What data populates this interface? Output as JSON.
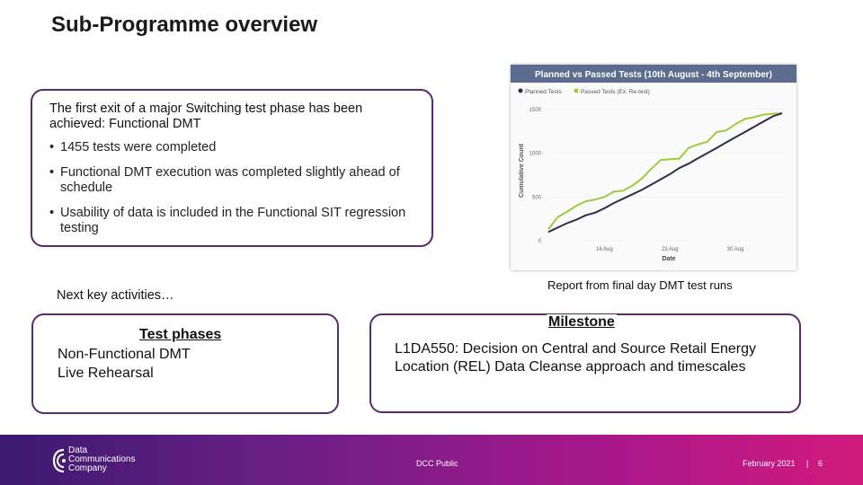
{
  "title": "Sub-Programme overview",
  "exit_box": {
    "heading": "The first exit of a major Switching test phase has been achieved: Functional DMT",
    "bullets": [
      "1455 tests were completed",
      "Functional DMT execution was completed slightly ahead of schedule",
      "Usability of data is included in the Functional SIT regression testing"
    ]
  },
  "next_label": "Next key activities…",
  "test_phases": {
    "heading": "Test phases",
    "items": [
      "Non-Functional DMT",
      "Live Rehearsal"
    ]
  },
  "milestone": {
    "heading": "Milestone",
    "text": "L1DA550: Decision on Central and Source Retail Energy Location (REL) Data Cleanse approach and timescales"
  },
  "report_label": "Report from final day DMT test runs",
  "chart_data": {
    "type": "line",
    "title": "Planned vs Passed Tests (10th August - 4th September)",
    "xlabel": "Date",
    "ylabel": "Cumulative Count",
    "x_ticks": [
      "16 Aug",
      "23 Aug",
      "30 Aug"
    ],
    "y_ticks": [
      0,
      500,
      1000,
      1500
    ],
    "ylim": [
      0,
      1600
    ],
    "legend_placement": "top-left",
    "x": [
      10,
      11,
      12,
      13,
      14,
      15,
      16,
      17,
      18,
      19,
      20,
      21,
      22,
      23,
      24,
      25,
      26,
      27,
      28,
      29,
      30,
      31,
      32,
      33,
      34,
      35
    ],
    "series": [
      {
        "name": "Planned Tests",
        "color": "#2b2d4a",
        "values": [
          100,
          150,
          200,
          240,
          290,
          320,
          370,
          430,
          480,
          530,
          580,
          640,
          700,
          760,
          830,
          880,
          940,
          1000,
          1060,
          1120,
          1180,
          1240,
          1300,
          1360,
          1420,
          1455
        ]
      },
      {
        "name": "Passed Tests (Ex. Re-test)",
        "color": "#9ccc3c",
        "values": [
          130,
          270,
          330,
          400,
          450,
          470,
          500,
          560,
          570,
          630,
          710,
          820,
          920,
          930,
          935,
          1060,
          1100,
          1130,
          1240,
          1260,
          1330,
          1390,
          1410,
          1440,
          1450,
          1455
        ]
      }
    ]
  },
  "footer": {
    "logo_lines": [
      "Data",
      "Communications",
      "Company"
    ],
    "classification": "DCC Public",
    "date": "February 2021",
    "separator": "|",
    "page": "6",
    "colors": {
      "start": "#3b1a6e",
      "end": "#d11a7c"
    }
  }
}
